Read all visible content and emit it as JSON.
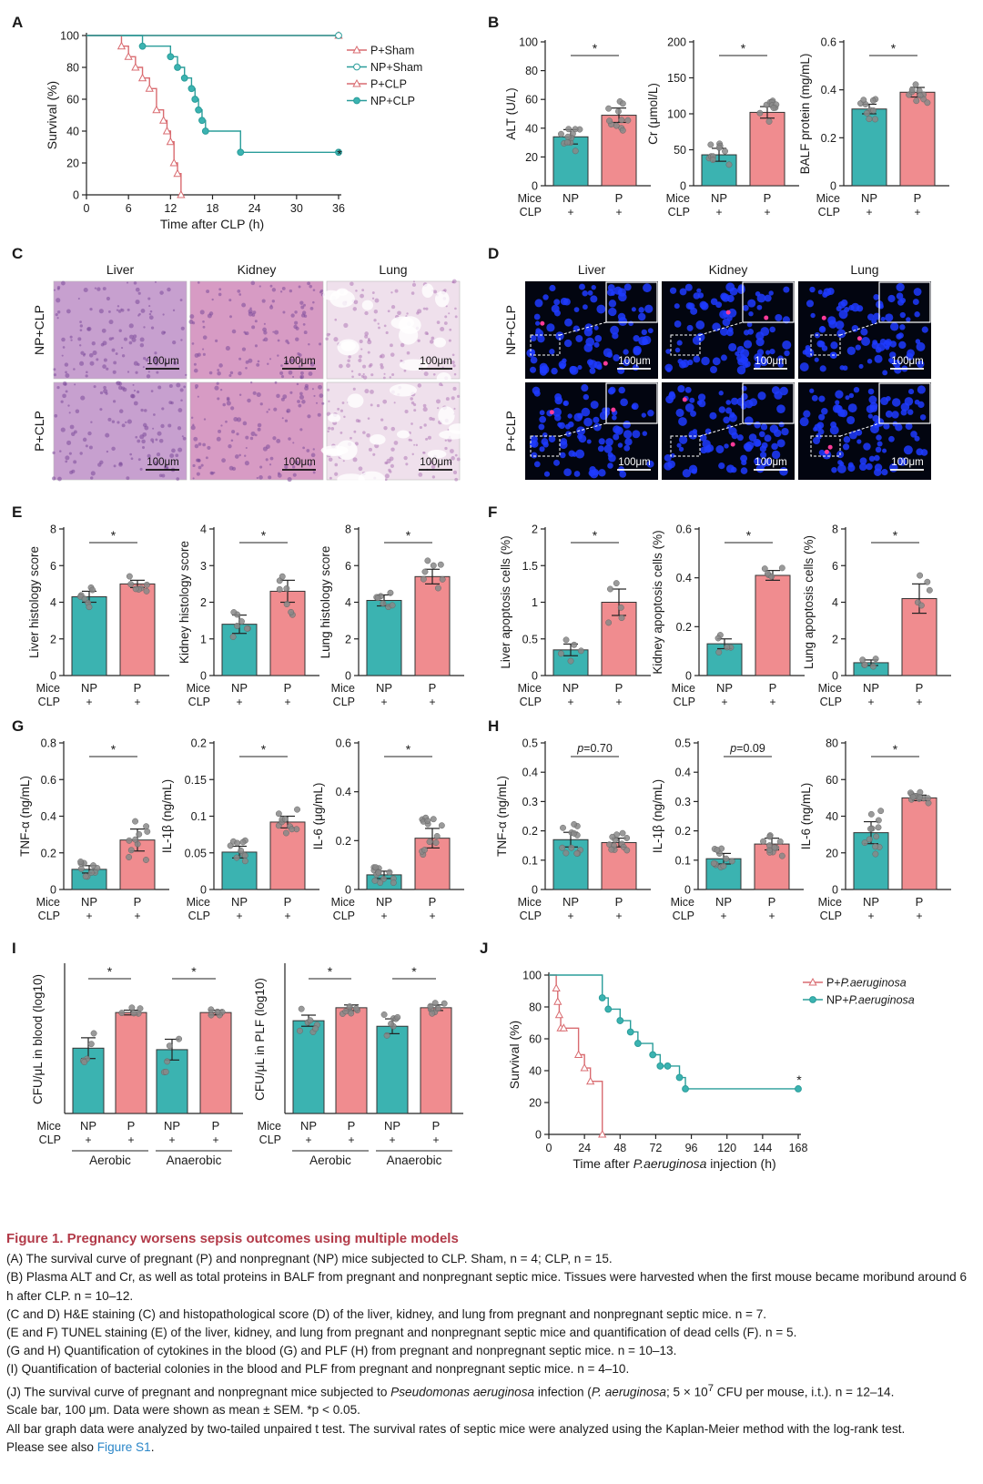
{
  "colors": {
    "teal": "#3bb3b1",
    "pink": "#f08c8f",
    "tealDark": "#2a9d9a",
    "pinkDark": "#d96b70"
  },
  "panel_letters": [
    "A",
    "B",
    "C",
    "D",
    "E",
    "F",
    "G",
    "H",
    "I",
    "J"
  ],
  "mice_label": "Mice",
  "clp_label": "CLP",
  "plus": "+",
  "panelA": {
    "xlabel": "Time after CLP (h)",
    "ylabel": "Survival (%)",
    "xticks": [
      0,
      6,
      12,
      18,
      24,
      30,
      36
    ],
    "yticks": [
      0,
      20,
      40,
      60,
      80,
      100
    ],
    "legend": [
      "P+Sham",
      "NP+Sham",
      "P+CLP",
      "NP+CLP"
    ],
    "sig": "*"
  },
  "panelC": {
    "cols": [
      "Liver",
      "Kidney",
      "Lung"
    ],
    "rows": [
      "NP+CLP",
      "P+CLP"
    ],
    "scale": "100μm"
  },
  "panelE": {
    "cols": [
      "Liver",
      "Kidney",
      "Lung"
    ],
    "rows": [
      "NP+CLP",
      "P+CLP"
    ],
    "scale": "100μm"
  },
  "panelI": {
    "groups": [
      "Aerobic",
      "Anaerobic"
    ],
    "charts": [
      {
        "ylabel": "CFU/μL in blood (log10)",
        "yticks": [
          0,
          1,
          2,
          3,
          4,
          5
        ]
      },
      {
        "ylabel": "CFU/μL in PLF (log10)",
        "yticks": [
          0,
          2,
          4,
          6,
          8
        ]
      }
    ]
  },
  "panelJ": {
    "xlabel": "Time after P.aeruginosa injection (h)",
    "ylabel": "Survival (%)",
    "xticks": [
      0,
      24,
      48,
      72,
      96,
      120,
      144,
      168
    ],
    "yticks": [
      0,
      20,
      40,
      60,
      80,
      100
    ],
    "legend": [
      "P+P.aeruginosa",
      "NP+P.aeruginosa"
    ],
    "sig": "*"
  },
  "chart_data": [
    {
      "panel": "A",
      "type": "line",
      "title": "",
      "xlabel": "Time after CLP (h)",
      "ylabel": "Survival (%)",
      "xlim": [
        0,
        36
      ],
      "ylim": [
        0,
        100
      ],
      "series": [
        {
          "name": "P+Sham",
          "x": [
            0,
            36
          ],
          "y": [
            100,
            100
          ]
        },
        {
          "name": "NP+Sham",
          "x": [
            0,
            36
          ],
          "y": [
            100,
            100
          ]
        },
        {
          "name": "P+CLP",
          "x": [
            0,
            5,
            6,
            7,
            8,
            9,
            10,
            11,
            11.5,
            12,
            12.5,
            13,
            13.5
          ],
          "y": [
            100,
            93.3,
            86.7,
            80,
            73.3,
            66.7,
            53.3,
            46.7,
            40,
            33.3,
            20,
            13.3,
            0
          ]
        },
        {
          "name": "NP+CLP",
          "x": [
            0,
            8,
            12,
            13,
            14,
            15,
            15.5,
            16,
            16.5,
            17,
            22,
            36
          ],
          "y": [
            100,
            93.3,
            86.7,
            80,
            73.3,
            66.7,
            60,
            53.3,
            46.7,
            40,
            26.7,
            26.7
          ]
        }
      ]
    },
    {
      "panel": "B",
      "type": "bar",
      "categories": [
        "NP",
        "P"
      ],
      "ylabel": "ALT (U/L)",
      "ylim": [
        0,
        100
      ],
      "yticks": [
        0,
        20,
        40,
        60,
        80,
        100
      ],
      "values": [
        34,
        49
      ],
      "sem": [
        5,
        5
      ],
      "sig": "*"
    },
    {
      "panel": "B",
      "type": "bar",
      "categories": [
        "NP",
        "P"
      ],
      "ylabel": "Cr (μmol/L)",
      "ylim": [
        0,
        200
      ],
      "yticks": [
        0,
        50,
        100,
        150,
        200
      ],
      "values": [
        43,
        102
      ],
      "sem": [
        9,
        8
      ],
      "sig": "*"
    },
    {
      "panel": "B",
      "type": "bar",
      "categories": [
        "NP",
        "P"
      ],
      "ylabel": "BALF protein (mg/mL)",
      "ylim": [
        0,
        0.6
      ],
      "yticks": [
        0,
        0.2,
        0.4,
        0.6
      ],
      "values": [
        0.32,
        0.39
      ],
      "sem": [
        0.02,
        0.02
      ],
      "sig": "*"
    },
    {
      "panel": "D",
      "type": "bar",
      "categories": [
        "NP",
        "P"
      ],
      "ylabel": "Liver histology score",
      "ylim": [
        0,
        8
      ],
      "yticks": [
        0,
        2,
        4,
        6,
        8
      ],
      "values": [
        4.3,
        5.0
      ],
      "sem": [
        0.3,
        0.2
      ],
      "sig": "*"
    },
    {
      "panel": "D",
      "type": "bar",
      "categories": [
        "NP",
        "P"
      ],
      "ylabel": "Kidney histology score",
      "ylim": [
        0,
        4
      ],
      "yticks": [
        0,
        1,
        2,
        3,
        4
      ],
      "values": [
        1.4,
        2.3
      ],
      "sem": [
        0.25,
        0.3
      ],
      "sig": "*"
    },
    {
      "panel": "D",
      "type": "bar",
      "categories": [
        "NP",
        "P"
      ],
      "ylabel": "Lung histology score",
      "ylim": [
        0,
        8
      ],
      "yticks": [
        0,
        2,
        4,
        6,
        8
      ],
      "values": [
        4.1,
        5.4
      ],
      "sem": [
        0.3,
        0.4
      ],
      "sig": "*"
    },
    {
      "panel": "F",
      "type": "bar",
      "categories": [
        "NP",
        "P"
      ],
      "ylabel": "Liver apoptosis cells (%)",
      "ylim": [
        0,
        2.0
      ],
      "yticks": [
        0,
        0.5,
        1.0,
        1.5,
        2.0
      ],
      "values": [
        0.35,
        1.0
      ],
      "sem": [
        0.08,
        0.18
      ],
      "sig": "*"
    },
    {
      "panel": "F",
      "type": "bar",
      "categories": [
        "NP",
        "P"
      ],
      "ylabel": "Kidney apoptosis cells (%)",
      "ylim": [
        0,
        0.6
      ],
      "yticks": [
        0,
        0.2,
        0.4,
        0.6
      ],
      "values": [
        0.13,
        0.41
      ],
      "sem": [
        0.02,
        0.02
      ],
      "sig": "*"
    },
    {
      "panel": "F",
      "type": "bar",
      "categories": [
        "NP",
        "P"
      ],
      "ylabel": "Lung apoptosis cells (%)",
      "ylim": [
        0,
        8
      ],
      "yticks": [
        0,
        2,
        4,
        6,
        8
      ],
      "values": [
        0.7,
        4.2
      ],
      "sem": [
        0.15,
        0.8
      ],
      "sig": "*"
    },
    {
      "panel": "G",
      "type": "bar",
      "categories": [
        "NP",
        "P"
      ],
      "ylabel": "TNF-α (ng/mL)",
      "ylim": [
        0,
        0.8
      ],
      "yticks": [
        0,
        0.2,
        0.4,
        0.6,
        0.8
      ],
      "values": [
        0.11,
        0.27
      ],
      "sem": [
        0.02,
        0.06
      ],
      "sig": "*"
    },
    {
      "panel": "G",
      "type": "bar",
      "categories": [
        "NP",
        "P"
      ],
      "ylabel": "IL-1β (ng/mL)",
      "ylim": [
        0,
        0.2
      ],
      "yticks": [
        0,
        0.05,
        0.1,
        0.15,
        0.2
      ],
      "values": [
        0.051,
        0.092
      ],
      "sem": [
        0.008,
        0.008
      ],
      "sig": "*"
    },
    {
      "panel": "G",
      "type": "bar",
      "categories": [
        "NP",
        "P"
      ],
      "ylabel": "IL-6 (μg/mL)",
      "ylim": [
        0,
        0.6
      ],
      "yticks": [
        0,
        0.2,
        0.4,
        0.6
      ],
      "values": [
        0.06,
        0.21
      ],
      "sem": [
        0.015,
        0.04
      ],
      "sig": "*"
    },
    {
      "panel": "H",
      "type": "bar",
      "categories": [
        "NP",
        "P"
      ],
      "ylabel": "TNF-α (ng/mL)",
      "ylim": [
        0,
        0.5
      ],
      "yticks": [
        0,
        0.1,
        0.2,
        0.3,
        0.4,
        0.5
      ],
      "values": [
        0.17,
        0.16
      ],
      "sem": [
        0.025,
        0.015
      ],
      "sig": "p=0.70"
    },
    {
      "panel": "H",
      "type": "bar",
      "categories": [
        "NP",
        "P"
      ],
      "ylabel": "IL-1β (ng/mL)",
      "ylim": [
        0,
        0.5
      ],
      "yticks": [
        0,
        0.1,
        0.2,
        0.3,
        0.4,
        0.5
      ],
      "values": [
        0.105,
        0.155
      ],
      "sem": [
        0.018,
        0.02
      ],
      "sig": "p=0.09"
    },
    {
      "panel": "H",
      "type": "bar",
      "categories": [
        "NP",
        "P"
      ],
      "ylabel": "IL-6 (ng/mL)",
      "ylim": [
        0,
        80
      ],
      "yticks": [
        0,
        20,
        40,
        60,
        80
      ],
      "values": [
        31,
        50
      ],
      "sem": [
        6,
        1.5
      ],
      "sig": "*"
    },
    {
      "panel": "I",
      "type": "bar",
      "ylabel": "CFU/μL in blood (log10)",
      "ylim": [
        0,
        5
      ],
      "categories": [
        "NP",
        "P",
        "NP",
        "P"
      ],
      "groups": [
        "Aerobic",
        "Aerobic",
        "Anaerobic",
        "Anaerobic"
      ],
      "values": [
        2.2,
        3.4,
        2.15,
        3.4
      ],
      "sem": [
        0.35,
        0.08,
        0.35,
        0.08
      ],
      "sig": [
        "*",
        "*"
      ]
    },
    {
      "panel": "I",
      "type": "bar",
      "ylabel": "CFU/μL in PLF (log10)",
      "ylim": [
        0,
        8
      ],
      "categories": [
        "NP",
        "P",
        "NP",
        "P"
      ],
      "groups": [
        "Aerobic",
        "Aerobic",
        "Anaerobic",
        "Anaerobic"
      ],
      "values": [
        5.0,
        5.7,
        4.7,
        5.7
      ],
      "sem": [
        0.3,
        0.15,
        0.4,
        0.15
      ],
      "sig": [
        "*",
        "*"
      ]
    },
    {
      "panel": "J",
      "type": "line",
      "xlabel": "Time after P.aeruginosa injection (h)",
      "ylabel": "Survival (%)",
      "xlim": [
        0,
        168
      ],
      "ylim": [
        0,
        100
      ],
      "series": [
        {
          "name": "P+P.aeruginosa",
          "x": [
            0,
            5,
            6,
            7,
            8,
            10,
            20,
            24,
            28,
            36
          ],
          "y": [
            100,
            91.7,
            83.3,
            75,
            66.7,
            66.7,
            50,
            41.7,
            33.3,
            0
          ]
        },
        {
          "name": "NP+P.aeruginosa",
          "x": [
            0,
            36,
            40,
            48,
            55,
            60,
            70,
            75,
            80,
            88,
            92,
            168
          ],
          "y": [
            100,
            85.7,
            78.6,
            71.4,
            64.3,
            57.1,
            50,
            42.9,
            42.9,
            35.7,
            28.6,
            28.6
          ]
        }
      ]
    }
  ],
  "caption": {
    "title": "Figure 1. Pregnancy worsens sepsis outcomes using multiple models",
    "lines": [
      "(A) The survival curve of pregnant (P) and nonpregnant (NP) mice subjected to CLP. Sham, n = 4; CLP, n = 15.",
      "(B) Plasma ALT and Cr, as well as total proteins in BALF from pregnant and nonpregnant septic mice. Tissues were harvested when the first mouse became moribund around 6 h after CLP. n = 10–12.",
      "(C and D) H&E staining (C) and histopathological score (D) of the liver, kidney, and lung from pregnant and nonpregnant septic mice. n = 7.",
      "(E and F) TUNEL staining (E) of the liver, kidney, and lung from pregnant and nonpregnant septic mice and quantification of dead cells (F). n = 5.",
      "(G and H) Quantification of cytokines in the blood (G) and PLF (H) from pregnant and nonpregnant septic mice. n = 10–13.",
      "(I) Quantification of bacterial colonies in the blood and PLF from pregnant and nonpregnant septic mice. n = 4–10."
    ],
    "lineJ_a": "(J) The survival curve of pregnant and nonpregnant mice subjected to ",
    "lineJ_i1": "Pseudomonas aeruginosa",
    "lineJ_b": " infection (",
    "lineJ_i2": "P. aeruginosa",
    "lineJ_c": "; 5 × 10",
    "lineJ_sup": "7",
    "lineJ_d": " CFU per mouse, i.t.). n = 12–14.",
    "line_scale": "Scale bar, 100 μm. Data were shown as mean ± SEM. *p < 0.05.",
    "line_stats": "All bar graph data were analyzed by two-tailed unpaired t test. The survival rates of septic mice were analyzed using the Kaplan-Meier method with the log-rank test.",
    "see_prefix": "Please see also ",
    "see_link": "Figure S1",
    "see_suffix": "."
  }
}
